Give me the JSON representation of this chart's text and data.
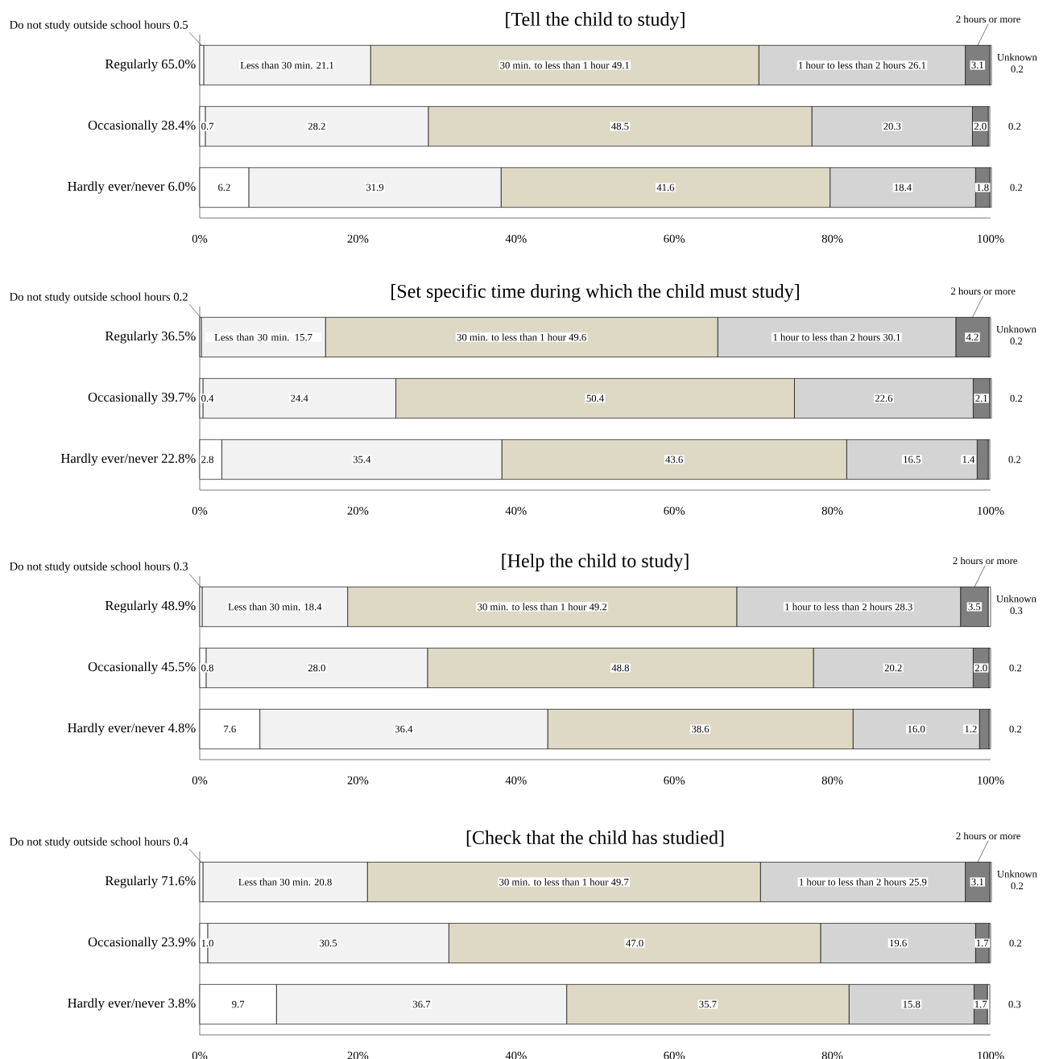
{
  "chart_data": [
    {
      "type": "bar",
      "orientation": "horizontal",
      "stacked": true,
      "title": "[Tell the child to study]",
      "categories": [
        "Regularly 65.0%",
        "Occasionally 28.4%",
        "Hardly ever/never 6.0%"
      ],
      "xlim": [
        0,
        100
      ],
      "xticks": [
        {
          "value": 0,
          "label": "0%"
        },
        {
          "value": 20,
          "label": "20%"
        },
        {
          "value": 40,
          "label": "40%"
        },
        {
          "value": 60,
          "label": "60%"
        },
        {
          "value": 80,
          "label": "80%"
        },
        {
          "value": 100,
          "label": "100%"
        }
      ],
      "series": [
        {
          "name": "Do not study outside school hours",
          "color": "#ffffff",
          "values": [
            0.5,
            0.7,
            6.2
          ],
          "value_labels": [
            "0.5",
            "0.7",
            "6.2"
          ]
        },
        {
          "name": "Less than 30 min.",
          "color": "#f2f2f2",
          "values": [
            21.1,
            28.2,
            31.9
          ],
          "value_labels": [
            "21.1",
            "28.2",
            "31.9"
          ]
        },
        {
          "name": "30 min. to less than 1 hour",
          "color": "#ddd9c4",
          "values": [
            49.1,
            48.5,
            41.6
          ],
          "value_labels": [
            "49.1",
            "48.5",
            "41.6"
          ]
        },
        {
          "name": "1 hour to less than 2 hours",
          "color": "#d4d4d4",
          "values": [
            26.1,
            20.3,
            18.4
          ],
          "value_labels": [
            "26.1",
            "20.3",
            "18.4"
          ]
        },
        {
          "name": "2 hours or more",
          "color": "#7f7f7f",
          "values": [
            3.1,
            2.0,
            1.8
          ],
          "value_labels": [
            "3.1",
            "2.0",
            "1.8"
          ]
        },
        {
          "name": "Unknown",
          "color": "#ffffff",
          "values": [
            0.2,
            0.2,
            0.2
          ],
          "value_labels": [
            "0.2",
            "0.2",
            "0.2"
          ]
        }
      ]
    },
    {
      "type": "bar",
      "orientation": "horizontal",
      "stacked": true,
      "title": "[Set specific time during which the child must study]",
      "categories": [
        "Regularly 36.5%",
        "Occasionally 39.7%",
        "Hardly ever/never 22.8%"
      ],
      "xlim": [
        0,
        100
      ],
      "xticks": [
        {
          "value": 0,
          "label": "0%"
        },
        {
          "value": 20,
          "label": "20%"
        },
        {
          "value": 40,
          "label": "40%"
        },
        {
          "value": 60,
          "label": "60%"
        },
        {
          "value": 80,
          "label": "80%"
        },
        {
          "value": 100,
          "label": "100%"
        }
      ],
      "series": [
        {
          "name": "Do not study outside school hours",
          "color": "#ffffff",
          "values": [
            0.2,
            0.4,
            2.8
          ],
          "value_labels": [
            "0.2",
            "0.4",
            "2.8"
          ]
        },
        {
          "name": "Less than 30 min.",
          "color": "#f2f2f2",
          "values": [
            15.7,
            24.4,
            35.4
          ],
          "value_labels": [
            "15.7",
            "24.4",
            "35.4"
          ]
        },
        {
          "name": "30 min. to less than 1 hour",
          "color": "#ddd9c4",
          "values": [
            49.6,
            50.4,
            43.6
          ],
          "value_labels": [
            "49.6",
            "50.4",
            "43.6"
          ]
        },
        {
          "name": "1 hour to less than 2 hours",
          "color": "#d4d4d4",
          "values": [
            30.1,
            22.6,
            16.5
          ],
          "value_labels": [
            "30.1",
            "22.6",
            "16.5"
          ]
        },
        {
          "name": "2 hours or more",
          "color": "#7f7f7f",
          "values": [
            4.2,
            2.1,
            1.4
          ],
          "value_labels": [
            "4.2",
            "2.1",
            "1.4"
          ]
        },
        {
          "name": "Unknown",
          "color": "#ffffff",
          "values": [
            0.2,
            0.2,
            0.2
          ],
          "value_labels": [
            "0.2",
            "0.2",
            "0.2"
          ]
        }
      ]
    },
    {
      "type": "bar",
      "orientation": "horizontal",
      "stacked": true,
      "title": "[Help the child to study]",
      "categories": [
        "Regularly 48.9%",
        "Occasionally 45.5%",
        "Hardly ever/never 4.8%"
      ],
      "xlim": [
        0,
        100
      ],
      "xticks": [
        {
          "value": 0,
          "label": "0%"
        },
        {
          "value": 20,
          "label": "20%"
        },
        {
          "value": 40,
          "label": "40%"
        },
        {
          "value": 60,
          "label": "60%"
        },
        {
          "value": 80,
          "label": "80%"
        },
        {
          "value": 100,
          "label": "100%"
        }
      ],
      "series": [
        {
          "name": "Do not study outside school hours",
          "color": "#ffffff",
          "values": [
            0.3,
            0.8,
            7.6
          ],
          "value_labels": [
            "0.3",
            "0.8",
            "7.6"
          ]
        },
        {
          "name": "Less than 30 min.",
          "color": "#f2f2f2",
          "values": [
            18.4,
            28.0,
            36.4
          ],
          "value_labels": [
            "18.4",
            "28.0",
            "36.4"
          ]
        },
        {
          "name": "30 min. to less than 1 hour",
          "color": "#ddd9c4",
          "values": [
            49.2,
            48.8,
            38.6
          ],
          "value_labels": [
            "49.2",
            "48.8",
            "38.6"
          ]
        },
        {
          "name": "1 hour to less than 2 hours",
          "color": "#d4d4d4",
          "values": [
            28.3,
            20.2,
            16.0
          ],
          "value_labels": [
            "28.3",
            "20.2",
            "16.0"
          ]
        },
        {
          "name": "2 hours or more",
          "color": "#7f7f7f",
          "values": [
            3.5,
            2.0,
            1.2
          ],
          "value_labels": [
            "3.5",
            "2.0",
            "1.2"
          ]
        },
        {
          "name": "Unknown",
          "color": "#ffffff",
          "values": [
            0.3,
            0.2,
            0.2
          ],
          "value_labels": [
            "0.3",
            "0.2",
            "0.2"
          ]
        }
      ]
    },
    {
      "type": "bar",
      "orientation": "horizontal",
      "stacked": true,
      "title": "[Check that the child has studied]",
      "categories": [
        "Regularly 71.6%",
        "Occasionally 23.9%",
        "Hardly ever/never 3.8%"
      ],
      "xlim": [
        0,
        100
      ],
      "xticks": [
        {
          "value": 0,
          "label": "0%"
        },
        {
          "value": 20,
          "label": "20%"
        },
        {
          "value": 40,
          "label": "40%"
        },
        {
          "value": 60,
          "label": "60%"
        },
        {
          "value": 80,
          "label": "80%"
        },
        {
          "value": 100,
          "label": "100%"
        }
      ],
      "series": [
        {
          "name": "Do not study outside school hours",
          "color": "#ffffff",
          "values": [
            0.4,
            1.0,
            9.7
          ],
          "value_labels": [
            "0.4",
            "1.0",
            "9.7"
          ]
        },
        {
          "name": "Less than 30 min.",
          "color": "#f2f2f2",
          "values": [
            20.8,
            30.5,
            36.7
          ],
          "value_labels": [
            "20.8",
            "30.5",
            "36.7"
          ]
        },
        {
          "name": "30 min. to less than 1 hour",
          "color": "#ddd9c4",
          "values": [
            49.7,
            47.0,
            35.7
          ],
          "value_labels": [
            "49.7",
            "47.0",
            "35.7"
          ]
        },
        {
          "name": "1 hour to less than 2 hours",
          "color": "#d4d4d4",
          "values": [
            25.9,
            19.6,
            15.8
          ],
          "value_labels": [
            "25.9",
            "19.6",
            "15.8"
          ]
        },
        {
          "name": "2 hours or more",
          "color": "#7f7f7f",
          "values": [
            3.1,
            1.7,
            1.7
          ],
          "value_labels": [
            "3.1",
            "1.7",
            "1.7"
          ]
        },
        {
          "name": "Unknown",
          "color": "#ffffff",
          "values": [
            0.2,
            0.2,
            0.3
          ],
          "value_labels": [
            "0.2",
            "0.2",
            "0.3"
          ]
        }
      ]
    }
  ]
}
